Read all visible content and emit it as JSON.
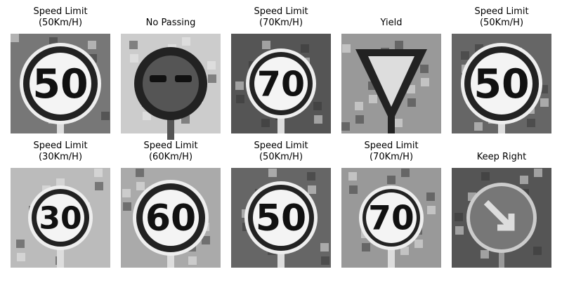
{
  "panels": [
    {
      "title": [
        "Speed Limit",
        "(50Km/H)"
      ],
      "sign": "50"
    },
    {
      "title": [
        "No Passing"
      ]
    },
    {
      "title": [
        "Speed Limit",
        "(70Km/H)"
      ],
      "sign": "70"
    },
    {
      "title": [
        "Yield"
      ]
    },
    {
      "title": [
        "Speed Limit",
        "(50Km/H)"
      ],
      "sign": "50"
    },
    {
      "title": [
        "Speed Limit",
        "(30Km/H)"
      ],
      "sign": "30"
    },
    {
      "title": [
        "Speed Limit",
        "(60Km/H)"
      ],
      "sign": "60"
    },
    {
      "title": [
        "Speed Limit",
        "(50Km/H)"
      ],
      "sign": "50"
    },
    {
      "title": [
        "Speed Limit",
        "(70Km/H)"
      ],
      "sign": "70"
    },
    {
      "title": [
        "Keep Right"
      ]
    }
  ]
}
